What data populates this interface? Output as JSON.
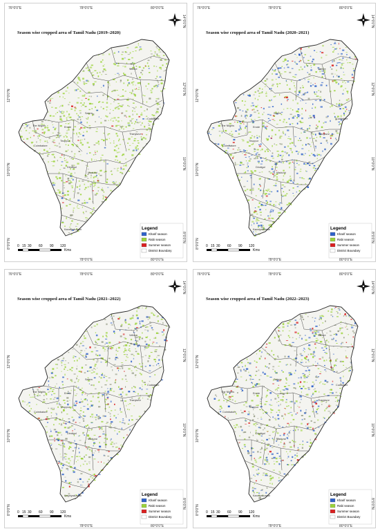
{
  "colors": {
    "kharif": "#2f62c9",
    "rabi": "#9bd33a",
    "summer": "#d92020",
    "boundary": "#ffffff",
    "outline": "#222222"
  },
  "icons": [
    "north-arrow-icon"
  ],
  "coords": {
    "top": [
      "76°0'0\"E",
      "78°0'0\"E",
      "80°0'0\"E"
    ],
    "bottom": [
      "78°0'0\"E",
      "80°0'0\"E"
    ],
    "left": [
      "12°0'0\"N",
      "10°0'0\"N",
      "8°0'0\"N"
    ],
    "right": [
      "14°0'0\"N",
      "12°0'0\"N",
      "10°0'0\"N",
      "8°0'0\"N"
    ]
  },
  "legend": {
    "title": "Legend",
    "items": [
      {
        "key": "kharif",
        "label": "Kharif season"
      },
      {
        "key": "rabi",
        "label": "Rabi season"
      },
      {
        "key": "summer",
        "label": "Summer season"
      },
      {
        "key": "boundary",
        "label": "District Boundary"
      }
    ]
  },
  "scale": {
    "ticks": [
      "0",
      "15",
      "30",
      "60",
      "90",
      "120"
    ],
    "unit": "Kms"
  },
  "district_labels": [
    "The Nilgiris",
    "Coimbatore",
    "Tiruppur",
    "Dindigul",
    "Madurai",
    "Thanjavur",
    "Kanniyakumari",
    "Vellore",
    "Cuddalore",
    "Erode",
    "Salem"
  ],
  "maps": [
    {
      "title": "Season wise cropped area of Tamil Nadu (2019–2020)",
      "kharif": 0.05,
      "rabi": 0.7,
      "summer": 0.03
    },
    {
      "title": "Season wise cropped area of Tamil Nadu (2020–2021)",
      "kharif": 0.35,
      "rabi": 0.5,
      "summer": 0.04
    },
    {
      "title": "Season wise cropped area of Tamil Nadu (2021–2022)",
      "kharif": 0.2,
      "rabi": 0.45,
      "summer": 0.05
    },
    {
      "title": "Season wise cropped area of Tamil Nadu (2022–2023)",
      "kharif": 0.25,
      "rabi": 0.4,
      "summer": 0.08
    }
  ]
}
